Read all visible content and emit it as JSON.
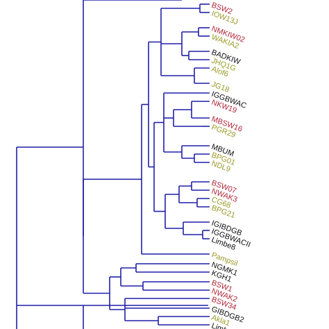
{
  "colors": {
    "branch": "#1f1fa8",
    "label_red": "#b0283a",
    "label_olive": "#9a9a2a",
    "label_black": "#111111",
    "background": "#ffffff"
  },
  "leaves": [
    {
      "text": "BSW2",
      "color": "red"
    },
    {
      "text": "IOW13J",
      "color": "olive"
    },
    {
      "text": "NMKIW02",
      "color": "red"
    },
    {
      "text": "WAKIA2",
      "color": "olive"
    },
    {
      "text": "BADKIW",
      "color": "black"
    },
    {
      "text": "JHQ1G",
      "color": "olive"
    },
    {
      "text": "Alof6",
      "color": "olive"
    },
    {
      "text": "JG18",
      "color": "olive"
    },
    {
      "text": "IGGBWAC",
      "color": "black"
    },
    {
      "text": "NKW19",
      "color": "red"
    },
    {
      "text": "MBSW16",
      "color": "red"
    },
    {
      "text": "PGR29",
      "color": "olive"
    },
    {
      "text": "MBUM",
      "color": "black"
    },
    {
      "text": "BPG01",
      "color": "olive"
    },
    {
      "text": "NDL9",
      "color": "olive"
    },
    {
      "text": "BSW07",
      "color": "red"
    },
    {
      "text": "NWAK3",
      "color": "red"
    },
    {
      "text": "CG68",
      "color": "olive"
    },
    {
      "text": "BPG21",
      "color": "olive"
    },
    {
      "text": "IGIBDGB",
      "color": "black"
    },
    {
      "text": "IGGBWACII",
      "color": "black"
    },
    {
      "text": "Limbe8",
      "color": "black"
    },
    {
      "text": "Pampsil",
      "color": "olive"
    },
    {
      "text": "NGMK1",
      "color": "black"
    },
    {
      "text": "KGH1",
      "color": "black"
    },
    {
      "text": "BSW1",
      "color": "red"
    },
    {
      "text": "NWAK2",
      "color": "red"
    },
    {
      "text": "BSW34",
      "color": "red"
    },
    {
      "text": "GIBDGB2",
      "color": "black"
    },
    {
      "text": "Akla1",
      "color": "olive"
    },
    {
      "text": "Limbe",
      "color": "black"
    }
  ]
}
